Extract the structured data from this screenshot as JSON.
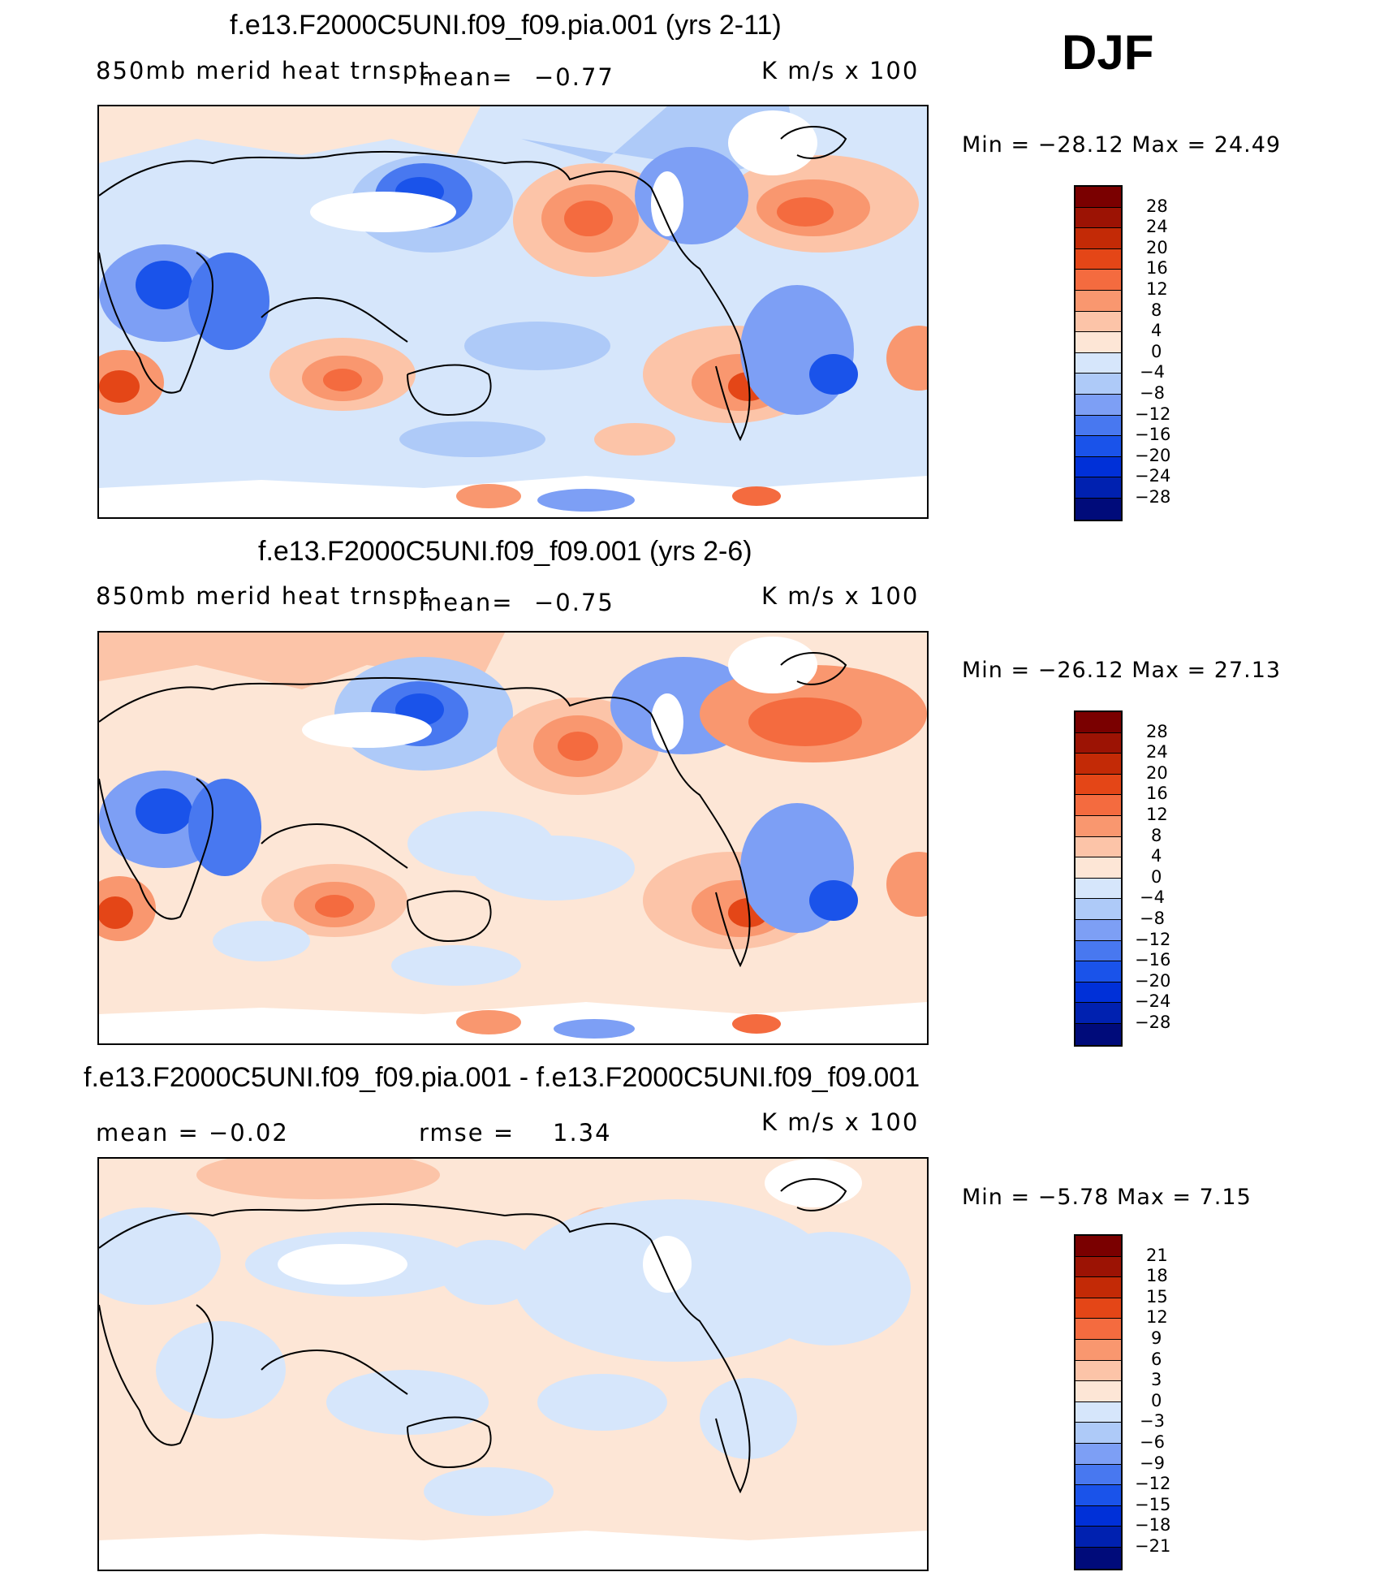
{
  "season": "DJF",
  "colors": {
    "scale16": [
      "#000b7a",
      "#0021b0",
      "#0030d8",
      "#1a53ea",
      "#4878f0",
      "#7d9ff5",
      "#aecaf8",
      "#d6e6fb",
      "#fde6d6",
      "#fcc4a8",
      "#f9976f",
      "#f46b3f",
      "#e44617",
      "#c32a06",
      "#9c1304",
      "#7a0000"
    ],
    "white": "#ffffff"
  },
  "panels": [
    {
      "title": "f.e13.F2000C5UNI.f09_f09.pia.001 (yrs 2-11)",
      "left_label": "850mb merid heat trnspt",
      "mean_label": "mean=",
      "mean_value": "−0.77",
      "units": "K m/s x 100",
      "min_text": "Min = −28.12 Max =   24.49",
      "colorbar": {
        "labels": [
          "28",
          "24",
          "20",
          "16",
          "12",
          "8",
          "4",
          "0",
          "−4",
          "−8",
          "−12",
          "−16",
          "−20",
          "−24",
          "−28"
        ]
      }
    },
    {
      "title": "f.e13.F2000C5UNI.f09_f09.001 (yrs 2-6)",
      "left_label": "850mb merid heat trnspt",
      "mean_label": "mean=",
      "mean_value": "−0.75",
      "units": "K m/s x 100",
      "min_text": "Min = −26.12 Max =   27.13",
      "colorbar": {
        "labels": [
          "28",
          "24",
          "20",
          "16",
          "12",
          "8",
          "4",
          "0",
          "−4",
          "−8",
          "−12",
          "−16",
          "−20",
          "−24",
          "−28"
        ]
      }
    },
    {
      "title": "f.e13.F2000C5UNI.f09_f09.pia.001 - f.e13.F2000C5UNI.f09_f09.001",
      "left_label": "mean =   −0.02",
      "mean_label": "rmse =",
      "mean_value": "1.34",
      "units": "K m/s x 100",
      "min_text": "Min =   −5.78 Max =    7.15",
      "colorbar": {
        "labels": [
          "21",
          "18",
          "15",
          "12",
          "9",
          "6",
          "3",
          "0",
          "−3",
          "−6",
          "−9",
          "−12",
          "−15",
          "−18",
          "−21"
        ]
      }
    }
  ]
}
